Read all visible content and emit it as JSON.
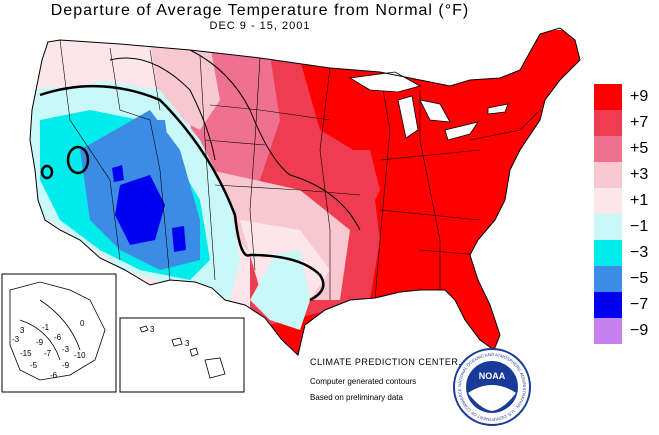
{
  "header": {
    "title": "Departure of Average Temperature from Normal (°F)",
    "subtitle": "DEC 9 - 15, 2001"
  },
  "legend": {
    "items": [
      {
        "label": "+9",
        "color": "#ff0000"
      },
      {
        "label": "+7",
        "color": "#ee3c50"
      },
      {
        "label": "+5",
        "color": "#f07090"
      },
      {
        "label": "+3",
        "color": "#f8c8d0"
      },
      {
        "label": "+1",
        "color": "#fde6ea"
      },
      {
        "label": "−1",
        "color": "#c8f8f8"
      },
      {
        "label": "−3",
        "color": "#00ebeb"
      },
      {
        "label": "−5",
        "color": "#3c8ce6"
      },
      {
        "label": "−7",
        "color": "#0000f0"
      },
      {
        "label": "−9",
        "color": "#c880f0"
      }
    ]
  },
  "credits": {
    "center": "CLIMATE PREDICTION CENTER, NOAA",
    "line1": "Computer generated contours",
    "line2": "Based on preliminary data"
  },
  "logo": {
    "text": "NOAA",
    "ring_text": "NATIONAL OCEANIC AND ATMOSPHERIC ADMINISTRATION · U.S. DEPARTMENT OF COMMERCE"
  },
  "alaska_labels": [
    "3",
    "-1",
    "-3",
    "-9",
    "-6",
    "-15",
    "-7",
    "-3",
    "-10",
    "-5",
    "-9",
    "0",
    "-6"
  ],
  "hawaii_labels": [
    "3",
    "3"
  ]
}
